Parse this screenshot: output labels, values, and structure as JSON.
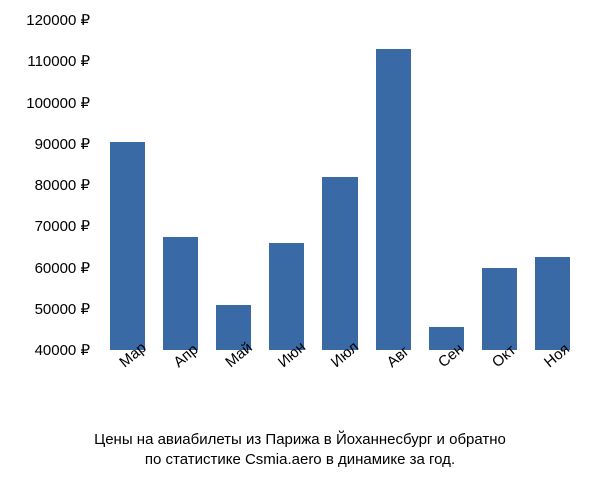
{
  "chart": {
    "type": "bar",
    "categories": [
      "Мар",
      "Апр",
      "Май",
      "Июн",
      "Июл",
      "Авг",
      "Сен",
      "Окт",
      "Ноя"
    ],
    "values": [
      90500,
      67500,
      51000,
      66000,
      82000,
      113000,
      45500,
      60000,
      62500
    ],
    "bar_color": "#3a6aa6",
    "ylim_min": 40000,
    "ylim_max": 120000,
    "ytick_step": 10000,
    "yticks": [
      40000,
      50000,
      60000,
      70000,
      80000,
      90000,
      100000,
      110000,
      120000
    ],
    "ytick_labels": [
      "40000 ₽",
      "50000 ₽",
      "60000 ₽",
      "70000 ₽",
      "80000 ₽",
      "90000 ₽",
      "100000 ₽",
      "110000 ₽",
      "120000 ₽"
    ],
    "background_color": "#ffffff",
    "axis_label_color": "#000000",
    "axis_label_fontsize": 15,
    "caption_line1": "Цены на авиабилеты из Парижа в Йоханнесбург и обратно",
    "caption_line2": "по статистике Csmia.aero в динамике за год.",
    "caption_fontsize": 15,
    "caption_color": "#000000",
    "bar_gap_ratio": 0.35,
    "x_label_rotation_deg": -40
  }
}
